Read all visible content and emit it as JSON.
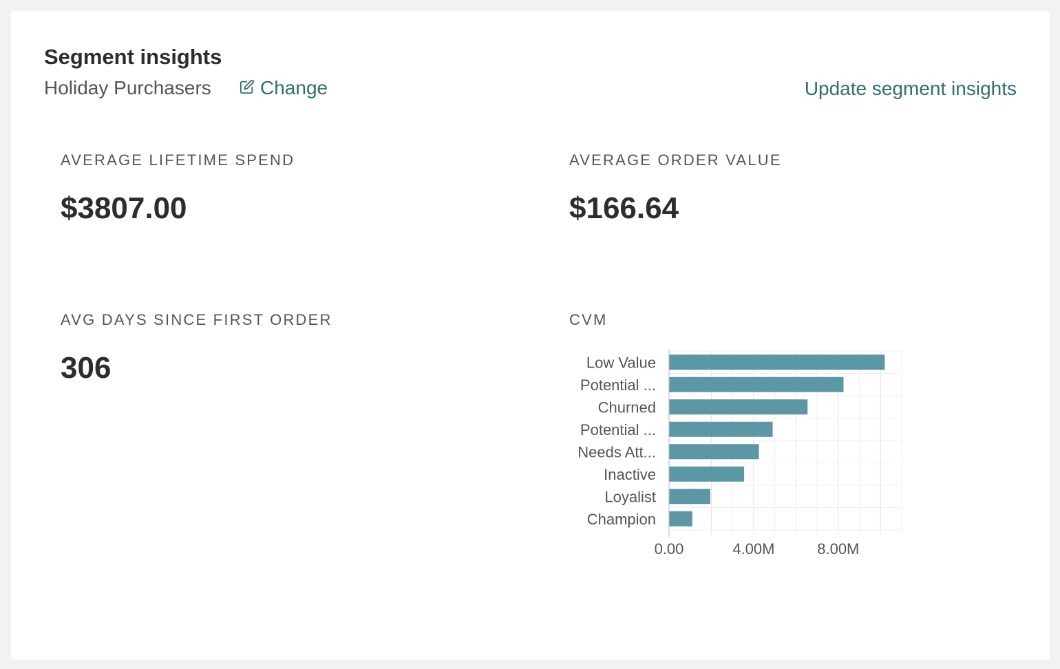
{
  "header": {
    "title": "Segment insights",
    "segment_name": "Holiday Purchasers",
    "change_label": "Change",
    "update_label": "Update segment insights"
  },
  "metrics": [
    {
      "label": "AVERAGE LIFETIME SPEND",
      "value": "$3807.00"
    },
    {
      "label": "AVERAGE ORDER VALUE",
      "value": "$166.64"
    },
    {
      "label": "AVG DAYS SINCE FIRST ORDER",
      "value": "306"
    }
  ],
  "cvm": {
    "label": "CVM"
  },
  "chart_data": {
    "type": "bar",
    "orientation": "horizontal",
    "categories": [
      "Low Value",
      "Potential ...",
      "Churned",
      "Potential ...",
      "Needs Att...",
      "Inactive",
      "Loyalist",
      "Champion"
    ],
    "values": [
      10200000,
      8250000,
      6550000,
      4900000,
      4250000,
      3550000,
      1950000,
      1100000
    ],
    "x_ticks": [
      "0.00",
      "4.00M",
      "8.00M"
    ],
    "xlim": [
      0,
      11000000
    ],
    "grid": true,
    "bar_color": "#5b97a5"
  },
  "colors": {
    "accent": "#2f6f73",
    "bar": "#5b97a5"
  }
}
